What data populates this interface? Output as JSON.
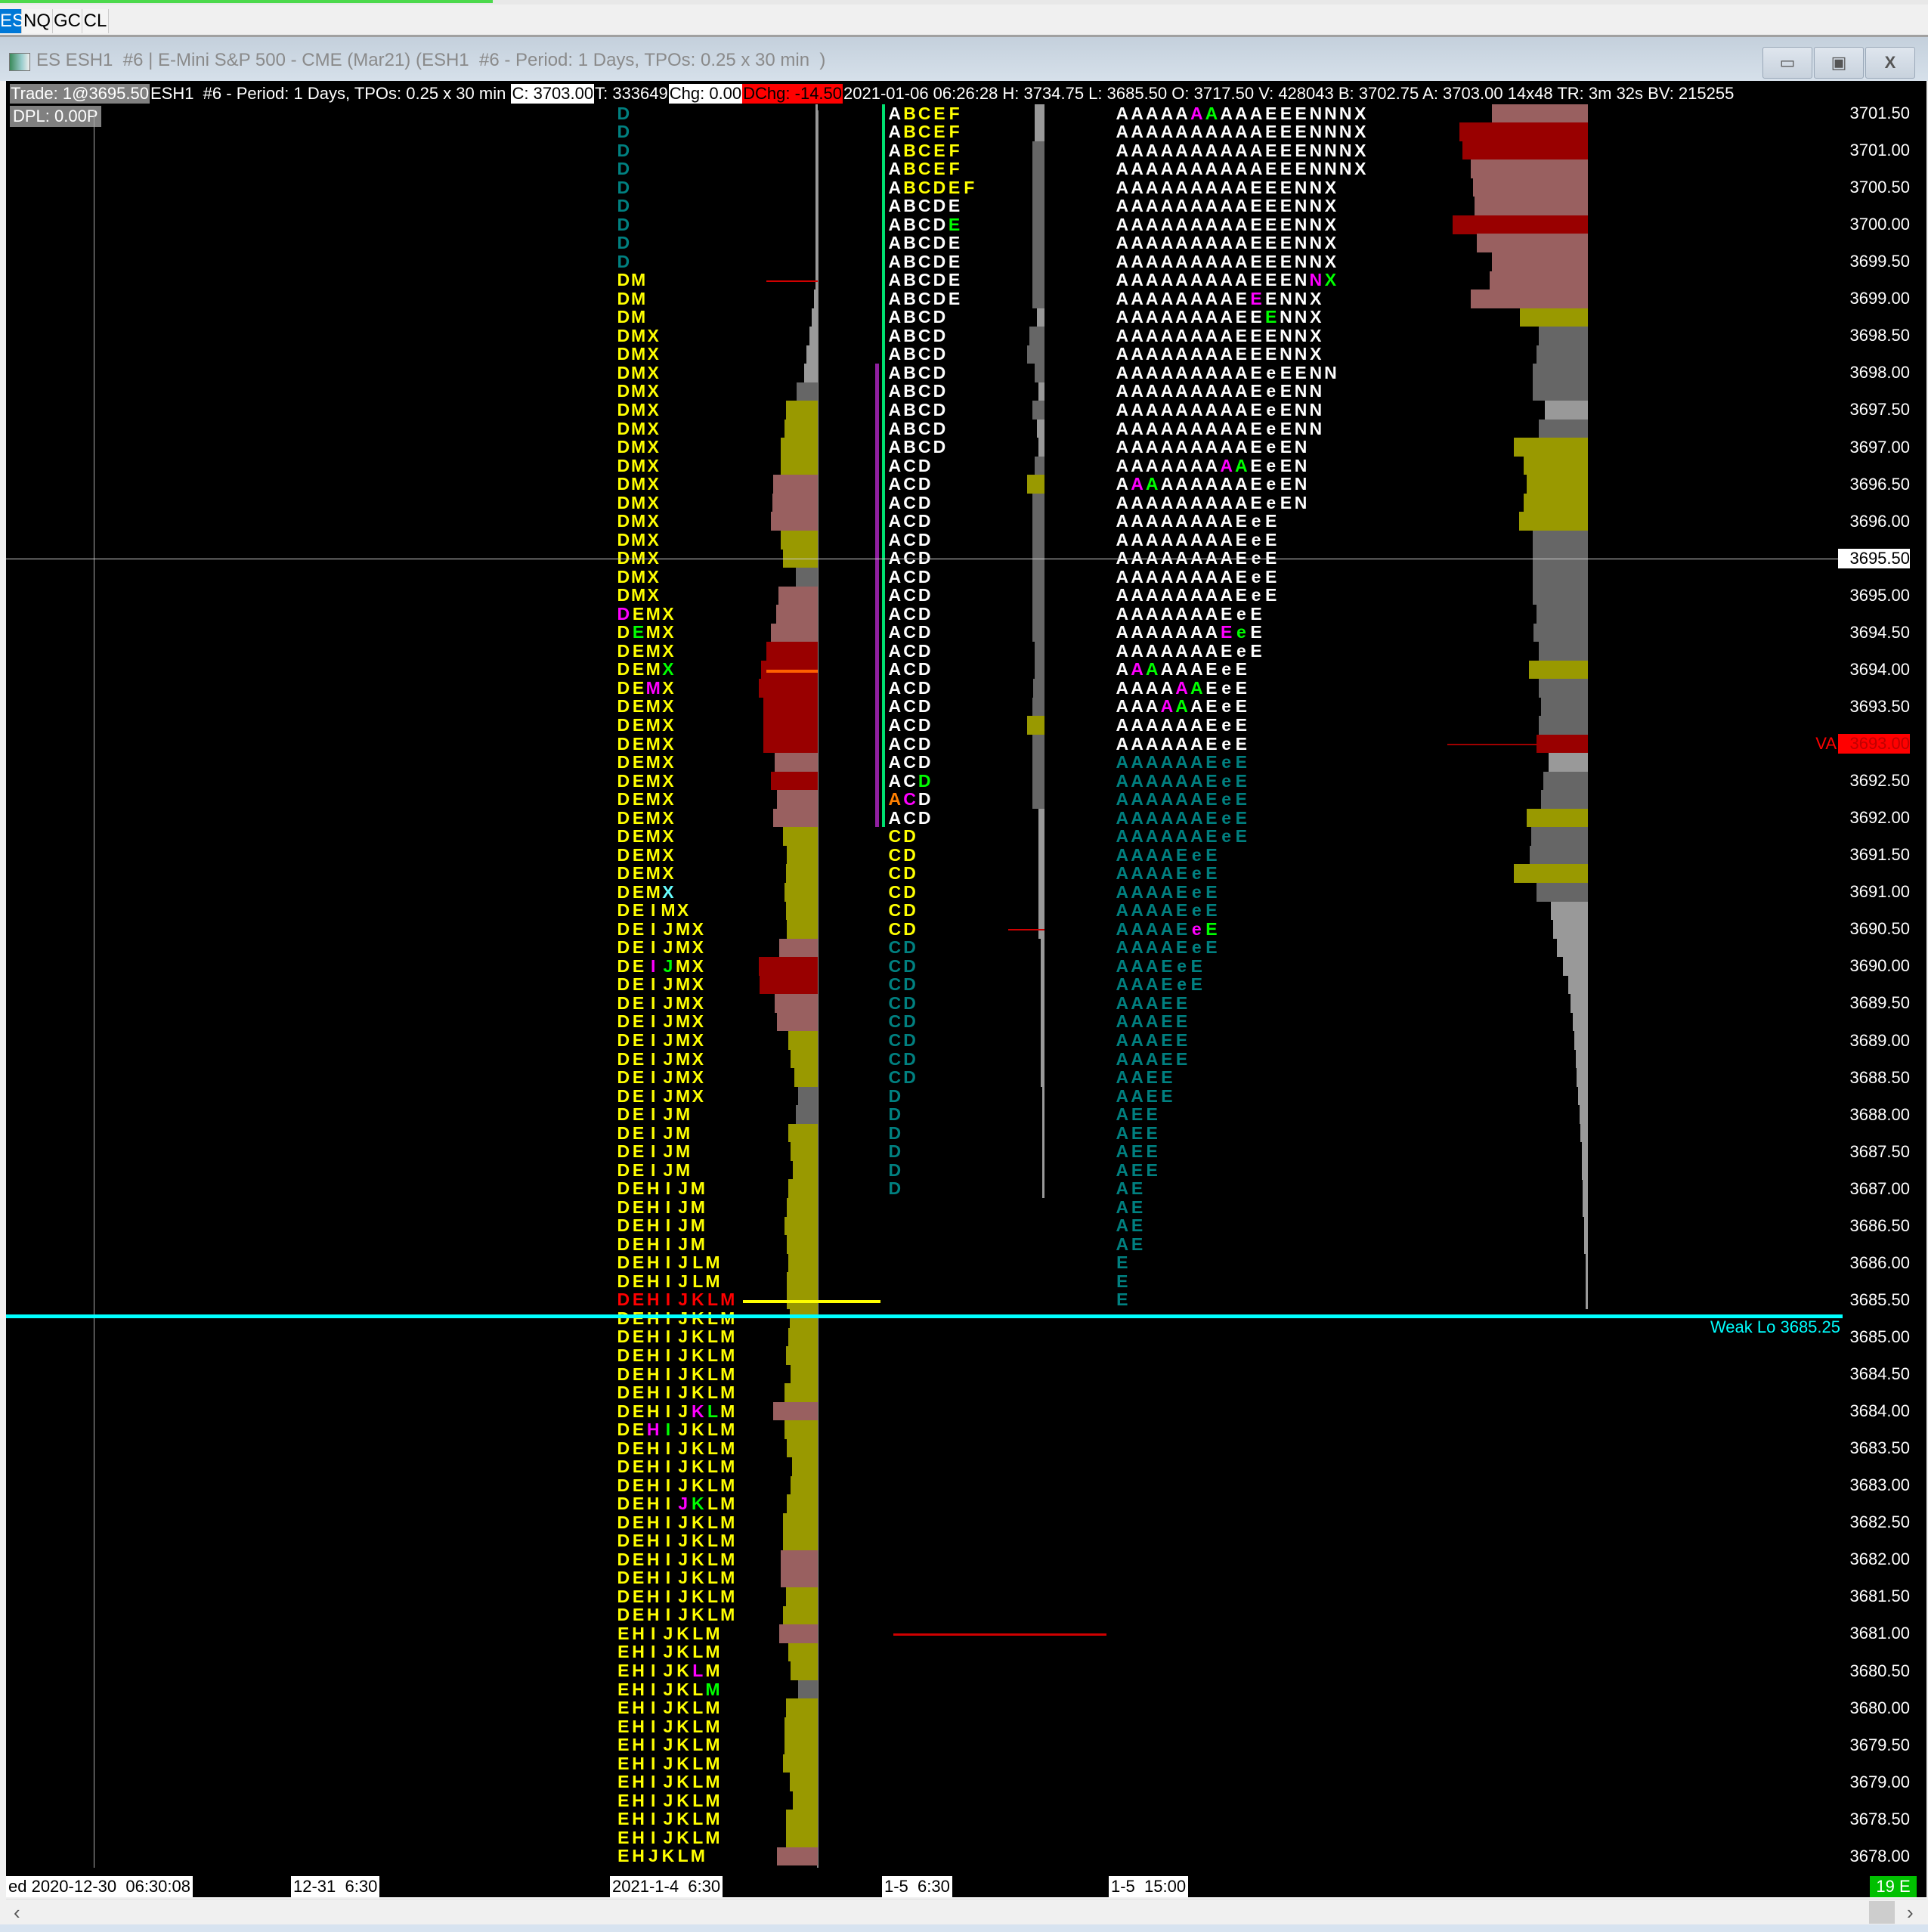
{
  "tabs": [
    {
      "label": "ES",
      "selected": true
    },
    {
      "label": "NQ"
    },
    {
      "label": "GC"
    },
    {
      "label": "CL"
    }
  ],
  "window": {
    "title": "ES ESH1  #6 | E-Mini S&P 500 - CME (Mar21) (ESH1  #6 - Period: 1 Days, TPOs: 0.25 x 30 min  )",
    "minimize": "▭",
    "restore": "▣",
    "close": "X"
  },
  "info": {
    "trade": "Trade: 1@3695.50",
    "desc": "ESH1  #6 - Period: 1 Days, TPOs: 0.25 x 30 min ",
    "close": "C: 3703.00",
    "ticks": "T: 333649",
    "chg": "Chg: 0.00",
    "dchg": "DChg: -14.50",
    "rest": "2021-01-06 06:26:28 H: 3734.75 L: 3685.50 O: 3717.50 V: 428043 B: 3702.75 A: 3703.00 14x48 TR: 3m 32s BV: 215255",
    "dpl": "DPL: 0.00P"
  },
  "colors": {
    "w": "#ffffff",
    "y": "#ffff00",
    "t": "#008080",
    "r": "#ff0000",
    "m": "#ff00ff",
    "g": "#00ff00",
    "c": "#66ffff",
    "o": "#ff8000",
    "vol": {
      "g1": "#999999",
      "g2": "#666666",
      "o": "#999900",
      "r": "#996060",
      "d": "#990000"
    }
  },
  "price_scale": {
    "top_price": 3701.5,
    "tick": 0.25,
    "labels": [
      "3701.50",
      "3701.00",
      "3700.50",
      "3700.00",
      "3699.50",
      "3699.00",
      "3698.50",
      "3698.00",
      "3697.50",
      "3697.00",
      "3696.50",
      "3696.00",
      "3695.50",
      "3695.00",
      "3694.50",
      "3694.00",
      "3693.50",
      "3693.00",
      "3692.50",
      "3692.00",
      "3691.50",
      "3691.00",
      "3690.50",
      "3690.00",
      "3689.50",
      "3689.00",
      "3688.50",
      "3688.00",
      "3687.50",
      "3687.00",
      "3686.50",
      "3686.00",
      "3685.50",
      "3685.00",
      "3684.50",
      "3684.00",
      "3683.50",
      "3683.00",
      "3682.50",
      "3682.00",
      "3681.50",
      "3681.00",
      "3680.50",
      "3680.00",
      "3679.50",
      "3679.00",
      "3678.50",
      "3678.00"
    ],
    "current_price": "3695.50",
    "va_price": "3693.00",
    "va_label": "VA"
  },
  "weak_low": {
    "label": "Weak Lo  3685.25",
    "price": 3685.25
  },
  "profiles": [
    {
      "name": "profile-2021-1-4",
      "tpo": [
        "D",
        "D",
        "D",
        "D",
        "D",
        "D",
        "D",
        "D",
        "D",
        "DM",
        "DM",
        "DM",
        "DMX",
        "DMX",
        "DMX",
        "DMX",
        "DMX",
        "DMX",
        "DMX",
        "DMX",
        "DMX",
        "DMX",
        "DMX",
        "DMX",
        "DMX",
        "DMX",
        "DMX",
        "DEMX",
        "DEMX",
        "DEMX",
        "DEMX",
        "DEMX",
        "DEMX",
        "DEMX",
        "DEMX",
        "DEMX",
        "DEMX",
        "DEMX",
        "DEMX",
        "DEMX",
        "DEMX",
        "DEMX",
        "DEMX",
        "DEIMX",
        "DEIJMX",
        "DEIJMX",
        "DEIJMX",
        "DEIJMX",
        "DEIJMX",
        "DEIJMX",
        "DEIJMX",
        "DEIJMX",
        "DEIJMX",
        "DEIJMX",
        "DEIJM",
        "DEIJM",
        "DEIJM",
        "DEIJM",
        "DEHIJM",
        "DEHIJM",
        "DEHIJM",
        "DEHIJM",
        "DEHIJLM",
        "DEHIJLM",
        "DEHIJKLM",
        "DEHIJKLM",
        "DEHIJKLM",
        "DEHIJKLM",
        "DEHIJKLM",
        "DEHIJKLM",
        "DEHIJKLM",
        "DEHIJKLM",
        "DEHIJKLM",
        "DEHIJKLM",
        "DEHIJKLM",
        "DEHIJKLM",
        "DEHIJKLM",
        "DEHIJKLM",
        "DEHIJKLM",
        "DEHIJKLM",
        "DEHIJKLM",
        "DEHIJKLM",
        "EHIJKLM",
        "EHIJKLM",
        "EHIJKLM",
        "EHIJKLM",
        "EHIJKLM",
        "EHIJKLM",
        "EHIJKLM",
        "EHIJKLM",
        "EHIJKLM",
        "EHIJKLM",
        "EHIJKLM",
        "EHIJKLM",
        "EHJKLM"
      ],
      "color": "ttttttttt                                                       r",
      "default_color": "y",
      "vol": [
        2,
        2,
        2,
        2,
        2,
        2,
        2,
        2,
        2,
        2,
        3,
        5,
        7,
        9,
        11,
        17,
        26,
        27,
        30,
        30,
        36,
        37,
        38,
        30,
        28,
        18,
        32,
        34,
        38,
        42,
        46,
        48,
        44,
        44,
        44,
        35,
        38,
        33,
        36,
        28,
        25,
        26,
        27,
        26,
        25,
        31,
        48,
        47,
        35,
        33,
        24,
        22,
        19,
        16,
        18,
        24,
        22,
        20,
        24,
        25,
        27,
        25,
        24,
        25,
        25,
        23,
        24,
        26,
        22,
        27,
        36,
        27,
        25,
        21,
        22,
        25,
        28,
        28,
        30,
        30,
        26,
        28,
        31,
        24,
        22,
        16,
        26,
        27,
        27,
        28,
        23,
        20,
        26,
        26,
        33
      ],
      "vol_color": [
        "g1",
        "g1",
        "g1",
        "g1",
        "g1",
        "g1",
        "g1",
        "g1",
        "g1",
        "g1",
        "g1",
        "g1",
        "g1",
        "g1",
        "g1",
        "g2",
        "o",
        "o",
        "o",
        "o",
        "r",
        "r",
        "r",
        "o",
        "o",
        "g2",
        "r",
        "r",
        "r",
        "d",
        "d",
        "d",
        "d",
        "d",
        "d",
        "r",
        "d",
        "r",
        "r",
        "o",
        "o",
        "o",
        "o",
        "o",
        "o",
        "r",
        "d",
        "d",
        "r",
        "r",
        "o",
        "o",
        "o",
        "g2",
        "g2",
        "o",
        "o",
        "o",
        "o",
        "o",
        "o",
        "o",
        "o",
        "o",
        "o",
        "o",
        "o",
        "o",
        "o",
        "o",
        "r",
        "o",
        "o",
        "o",
        "o",
        "o",
        "o",
        "o",
        "r",
        "r",
        "o",
        "o",
        "r",
        "o",
        "o",
        "g2",
        "o",
        "o",
        "o",
        "o",
        "o",
        "o",
        "o",
        "o",
        "r"
      ],
      "highlights": [
        [
          27,
          0,
          "m"
        ],
        [
          28,
          1,
          "g"
        ],
        [
          30,
          3,
          "g"
        ],
        [
          31,
          2,
          "m"
        ],
        [
          42,
          3,
          "c"
        ],
        [
          46,
          2,
          "m"
        ],
        [
          46,
          3,
          "g"
        ],
        [
          70,
          5,
          "m"
        ],
        [
          70,
          6,
          "g"
        ],
        [
          71,
          2,
          "m"
        ],
        [
          71,
          3,
          "g"
        ],
        [
          75,
          4,
          "m"
        ],
        [
          75,
          5,
          "g"
        ],
        [
          84,
          5,
          "m"
        ],
        [
          85,
          6,
          "g"
        ]
      ]
    },
    {
      "name": "profile-1-5-6:30",
      "tpo": [
        "ABCEF",
        "ABCEF",
        "ABCEF",
        "ABCEF",
        "ABCDEF",
        "ABCDE",
        "ABCDE",
        "ABCDE",
        "ABCDE",
        "ABCDE",
        "ABCDE",
        "ABCD",
        "ABCD",
        "ABCD",
        "ABCD",
        "ABCD",
        "ABCD",
        "ABCD",
        "ABCD",
        "ACD",
        "ACD",
        "ACD",
        "ACD",
        "ACD",
        "ACD",
        "ACD",
        "ACD",
        "ACD",
        "ACD",
        "ACD",
        "ACD",
        "ACD",
        "ACD",
        "ACD",
        "ACD",
        "ACD",
        "ACD",
        "ACD",
        "ACD",
        "CD",
        "CD",
        "CD",
        "CD",
        "CD",
        "CD",
        "CD",
        "CD",
        "CD",
        "CD",
        "CD",
        "CD",
        "CD",
        "CD",
        "D",
        "D",
        "D",
        "D",
        "D",
        "D"
      ],
      "color": "yyyyywwwwwwwwwwwwwwwwwwwwwwwwwwwwwwwwwwyyyyyyttttttttttttttt",
      "default_color": "y",
      "vol": [
        8,
        8,
        10,
        10,
        10,
        10,
        10,
        10,
        10,
        10,
        10,
        6,
        12,
        14,
        8,
        5,
        10,
        6,
        5,
        8,
        14,
        10,
        10,
        10,
        10,
        10,
        10,
        10,
        10,
        8,
        8,
        9,
        10,
        14,
        10,
        10,
        10,
        10,
        5,
        5,
        5,
        5,
        5,
        5,
        5,
        3,
        3,
        3,
        3,
        3,
        3,
        3,
        3,
        2,
        2,
        2,
        2,
        2,
        2
      ],
      "vol_color": [
        "g1",
        "g1",
        "g2",
        "g2",
        "g2",
        "g2",
        "g2",
        "g2",
        "g2",
        "g2",
        "g2",
        "g1",
        "g2",
        "g2",
        "g2",
        "g1",
        "g2",
        "g1",
        "g1",
        "g2",
        "o",
        "g2",
        "g2",
        "g2",
        "g2",
        "g2",
        "g2",
        "g2",
        "g2",
        "g2",
        "g2",
        "g2",
        "g2",
        "o",
        "g2",
        "g2",
        "g2",
        "g2",
        "g1",
        "g1",
        "g1",
        "g1",
        "g1",
        "g1",
        "g1",
        "g1",
        "g1",
        "g1",
        "g1",
        "g1",
        "g1",
        "g1",
        "g1",
        "g1",
        "g1",
        "g1",
        "g1",
        "g1",
        "g1"
      ],
      "highlights": [
        [
          0,
          0,
          "w"
        ],
        [
          1,
          0,
          "w"
        ],
        [
          2,
          0,
          "w"
        ],
        [
          3,
          0,
          "w"
        ],
        [
          4,
          0,
          "w"
        ],
        [
          6,
          4,
          "g"
        ],
        [
          36,
          2,
          "g"
        ],
        [
          37,
          0,
          "o"
        ],
        [
          37,
          1,
          "m"
        ]
      ]
    },
    {
      "name": "profile-1-5-15:00",
      "tpo": [
        "AAAAAAAAAAEEENNNX",
        "AAAAAAAAAAEEENNNX",
        "AAAAAAAAAAEEENNNX",
        "AAAAAAAAAAEEENNNX",
        "AAAAAAAAAEEENNX",
        "AAAAAAAAAEEENNX",
        "AAAAAAAAAEEENNX",
        "AAAAAAAAAEEENNX",
        "AAAAAAAAAEEENNX",
        "AAAAAAAAAEEENNX",
        "AAAAAAAAEEENNX",
        "AAAAAAAAEEENNX",
        "AAAAAAAAEEENNX",
        "AAAAAAAAEEENNX",
        "AAAAAAAAAEeEENN",
        "AAAAAAAAAEeENN",
        "AAAAAAAAAEeENN",
        "AAAAAAAAAEeENN",
        "AAAAAAAAAEeEN",
        "AAAAAAAAAEeEN",
        "AAAAAAAAAEeEN",
        "AAAAAAAAAEeEN",
        "AAAAAAAAEeE",
        "AAAAAAAAEeE",
        "AAAAAAAAEeE",
        "AAAAAAAAEeE",
        "AAAAAAAAEeE",
        "AAAAAAAEeE",
        "AAAAAAAEeE",
        "AAAAAAAEeE",
        "AAAAAAEeE",
        "AAAAAAEeE",
        "AAAAAAEeE",
        "AAAAAAEeE",
        "AAAAAAEeE",
        "AAAAAAEeE",
        "AAAAAAEeE",
        "AAAAAAEeE",
        "AAAAAAEeE",
        "AAAAAAEeE",
        "AAAAEeE",
        "AAAAEeE",
        "AAAAEeE",
        "AAAAEeE",
        "AAAAEeE",
        "AAAAEeE",
        "AAAEeE",
        "AAAEeE",
        "AAAEE",
        "AAAEE",
        "AAAEE",
        "AAAEE",
        "AAEE",
        "AAEE",
        "AEE",
        "AEE",
        "AEE",
        "AEE",
        "AE",
        "AE",
        "AE",
        "AE",
        "E",
        "E",
        "E"
      ],
      "color": "wwwwwwwwwwwwwwwwwwwwwwwwwwwwwwwwwwwtttttttttttttttttttttttttttttt",
      "default_color": "t",
      "vol": [
        78,
        104,
        102,
        95,
        93,
        92,
        110,
        90,
        78,
        80,
        95,
        55,
        40,
        42,
        45,
        45,
        35,
        40,
        60,
        52,
        50,
        52,
        56,
        45,
        45,
        45,
        45,
        42,
        44,
        40,
        48,
        40,
        38,
        40,
        42,
        32,
        36,
        38,
        50,
        46,
        47,
        60,
        42,
        30,
        28,
        25,
        20,
        16,
        14,
        12,
        11,
        10,
        9,
        8,
        7,
        6,
        5,
        5,
        4,
        4,
        3,
        3,
        2,
        2,
        2
      ],
      "vol_color": [
        "r",
        "d",
        "d",
        "r",
        "r",
        "r",
        "d",
        "r",
        "r",
        "r",
        "r",
        "o",
        "g2",
        "g2",
        "g2",
        "g2",
        "g1",
        "g2",
        "o",
        "o",
        "o",
        "o",
        "o",
        "g2",
        "g2",
        "g2",
        "g2",
        "g2",
        "g2",
        "g2",
        "o",
        "g2",
        "g2",
        "g2",
        "d",
        "g1",
        "g2",
        "g2",
        "o",
        "g2",
        "g2",
        "o",
        "g2",
        "g1",
        "g1",
        "g1",
        "g1",
        "g1",
        "g1",
        "g1",
        "g1",
        "g1",
        "g1",
        "g1",
        "g1",
        "g1",
        "g1",
        "g1",
        "g1",
        "g1",
        "g1",
        "g1",
        "g1",
        "g1",
        "g1"
      ],
      "highlights": [
        [
          0,
          5,
          "m"
        ],
        [
          0,
          6,
          "g"
        ],
        [
          9,
          13,
          "m"
        ],
        [
          9,
          14,
          "g"
        ],
        [
          10,
          9,
          "m"
        ],
        [
          11,
          10,
          "g"
        ],
        [
          19,
          7,
          "m"
        ],
        [
          19,
          8,
          "g"
        ],
        [
          20,
          1,
          "m"
        ],
        [
          20,
          2,
          "g"
        ],
        [
          28,
          7,
          "m"
        ],
        [
          28,
          8,
          "g"
        ],
        [
          30,
          1,
          "m"
        ],
        [
          30,
          2,
          "g"
        ],
        [
          31,
          4,
          "m"
        ],
        [
          31,
          5,
          "g"
        ],
        [
          32,
          3,
          "m"
        ],
        [
          32,
          4,
          "g"
        ],
        [
          44,
          5,
          "m"
        ],
        [
          44,
          6,
          "g"
        ]
      ]
    }
  ],
  "time_axis": [
    "ed 2020-12-30  06:30:08",
    "12-31  6:30",
    "2021-1-4  6:30",
    "1-5  6:30",
    "1-5  15:00"
  ],
  "status_badge": "19 E",
  "scrollbar": {
    "left": "‹",
    "right": "›"
  }
}
